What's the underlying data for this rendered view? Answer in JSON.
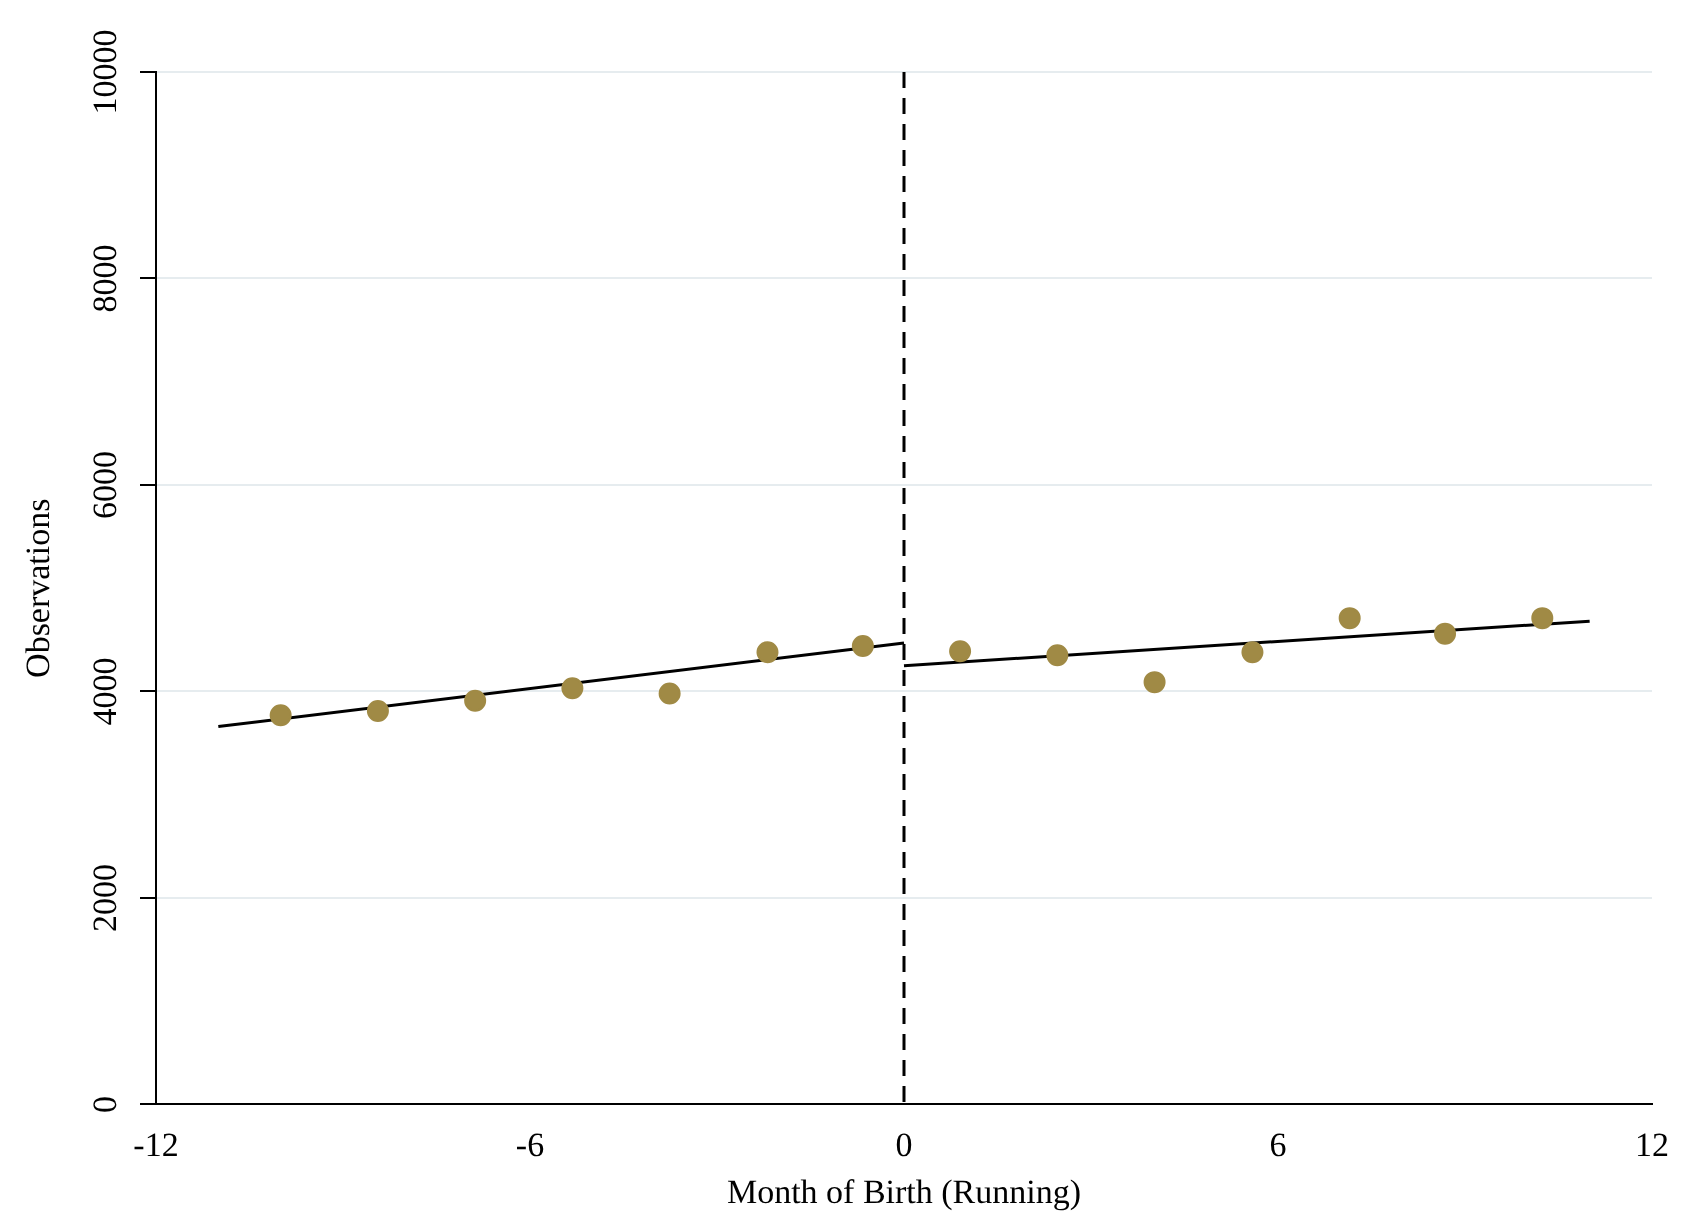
{
  "chart_data": {
    "type": "scatter",
    "xlabel": "Month of Birth (Running)",
    "ylabel": "Observations",
    "xlim": [
      -12,
      12
    ],
    "xticks": [
      -12,
      -6,
      0,
      6,
      12
    ],
    "ylim": [
      0,
      10000
    ],
    "yticks": [
      0,
      2000,
      4000,
      6000,
      8000,
      10000
    ],
    "grid": "y",
    "legend": false,
    "marker": "circle",
    "series": [
      {
        "color": "#a08a45",
        "x": [
          -10,
          -8.44,
          -6.88,
          -5.32,
          -3.76,
          -2.19,
          -0.66,
          0.9,
          2.46,
          4.02,
          5.59,
          7.15,
          8.68,
          10.24
        ],
        "values": [
          3770,
          3810,
          3910,
          4030,
          3980,
          4380,
          4440,
          4390,
          4350,
          4090,
          4380,
          4710,
          4560,
          4710
        ]
      },
      {
        "type": "line",
        "color": "#000000",
        "marker": "none",
        "x": [
          -11,
          0
        ],
        "values": [
          3660,
          4470
        ]
      },
      {
        "type": "line",
        "color": "#000000",
        "marker": "none",
        "x": [
          0,
          11
        ],
        "values": [
          4250,
          4680
        ]
      }
    ],
    "ref_lines": [
      {
        "axis": "x",
        "value": 0,
        "color": "#000000",
        "line_style": "dashed"
      }
    ]
  }
}
